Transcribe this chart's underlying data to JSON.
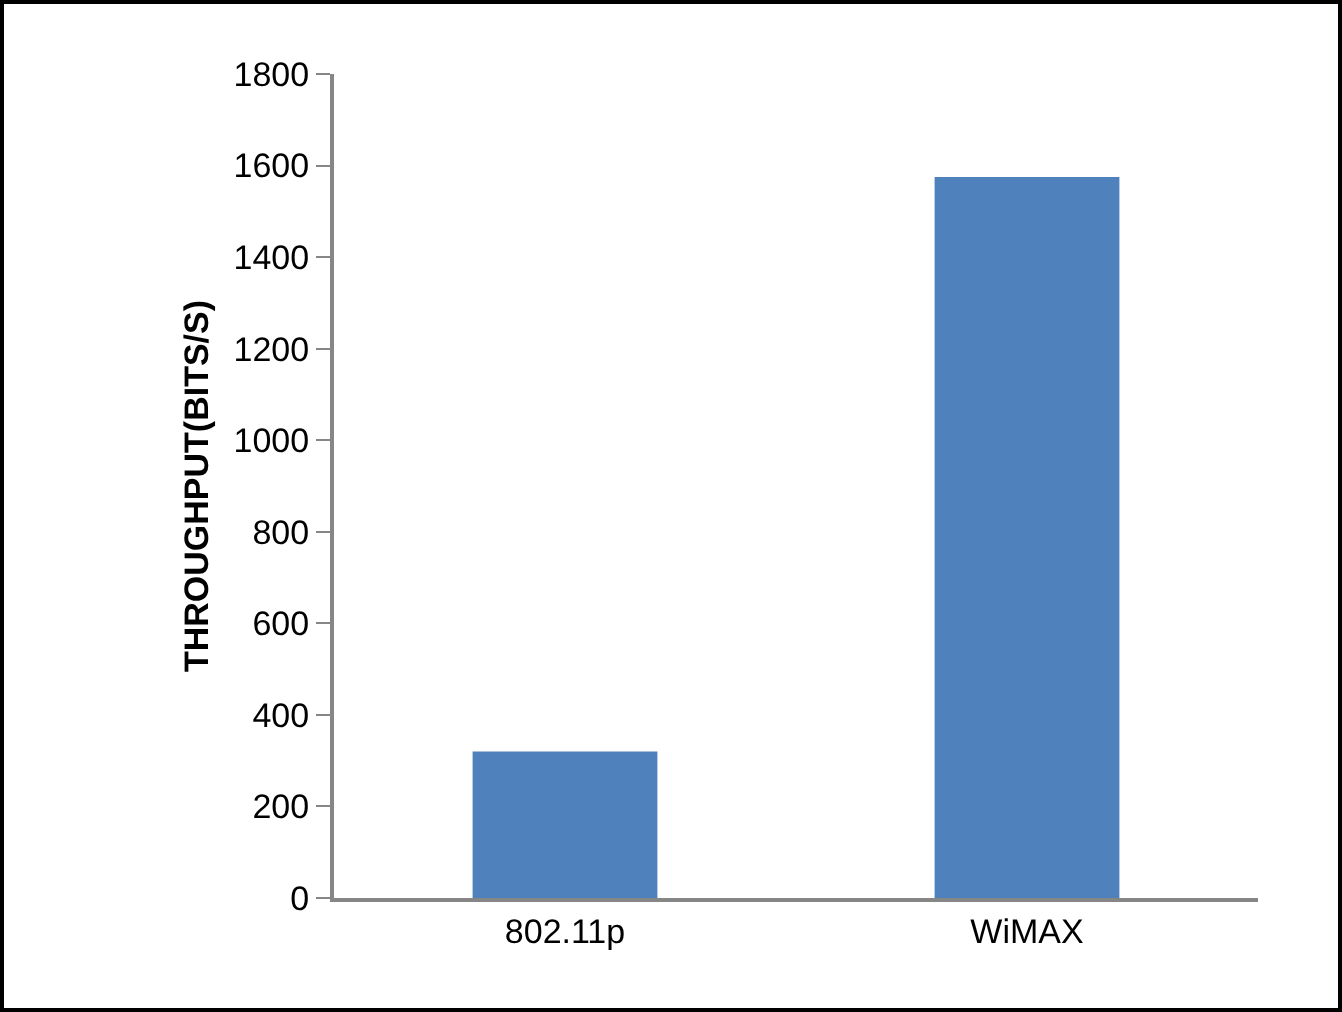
{
  "chart_data": {
    "type": "bar",
    "ylabel": "THROUGHPUT(BITS/S)",
    "categories": [
      "802.11p",
      "WiMAX"
    ],
    "values": [
      320,
      1575
    ],
    "color": "#4f81bd",
    "ylim": [
      0,
      1800
    ],
    "yticks": [
      0,
      200,
      400,
      600,
      800,
      1000,
      1200,
      1400,
      1600,
      1800
    ],
    "grid": false,
    "legend": false
  }
}
